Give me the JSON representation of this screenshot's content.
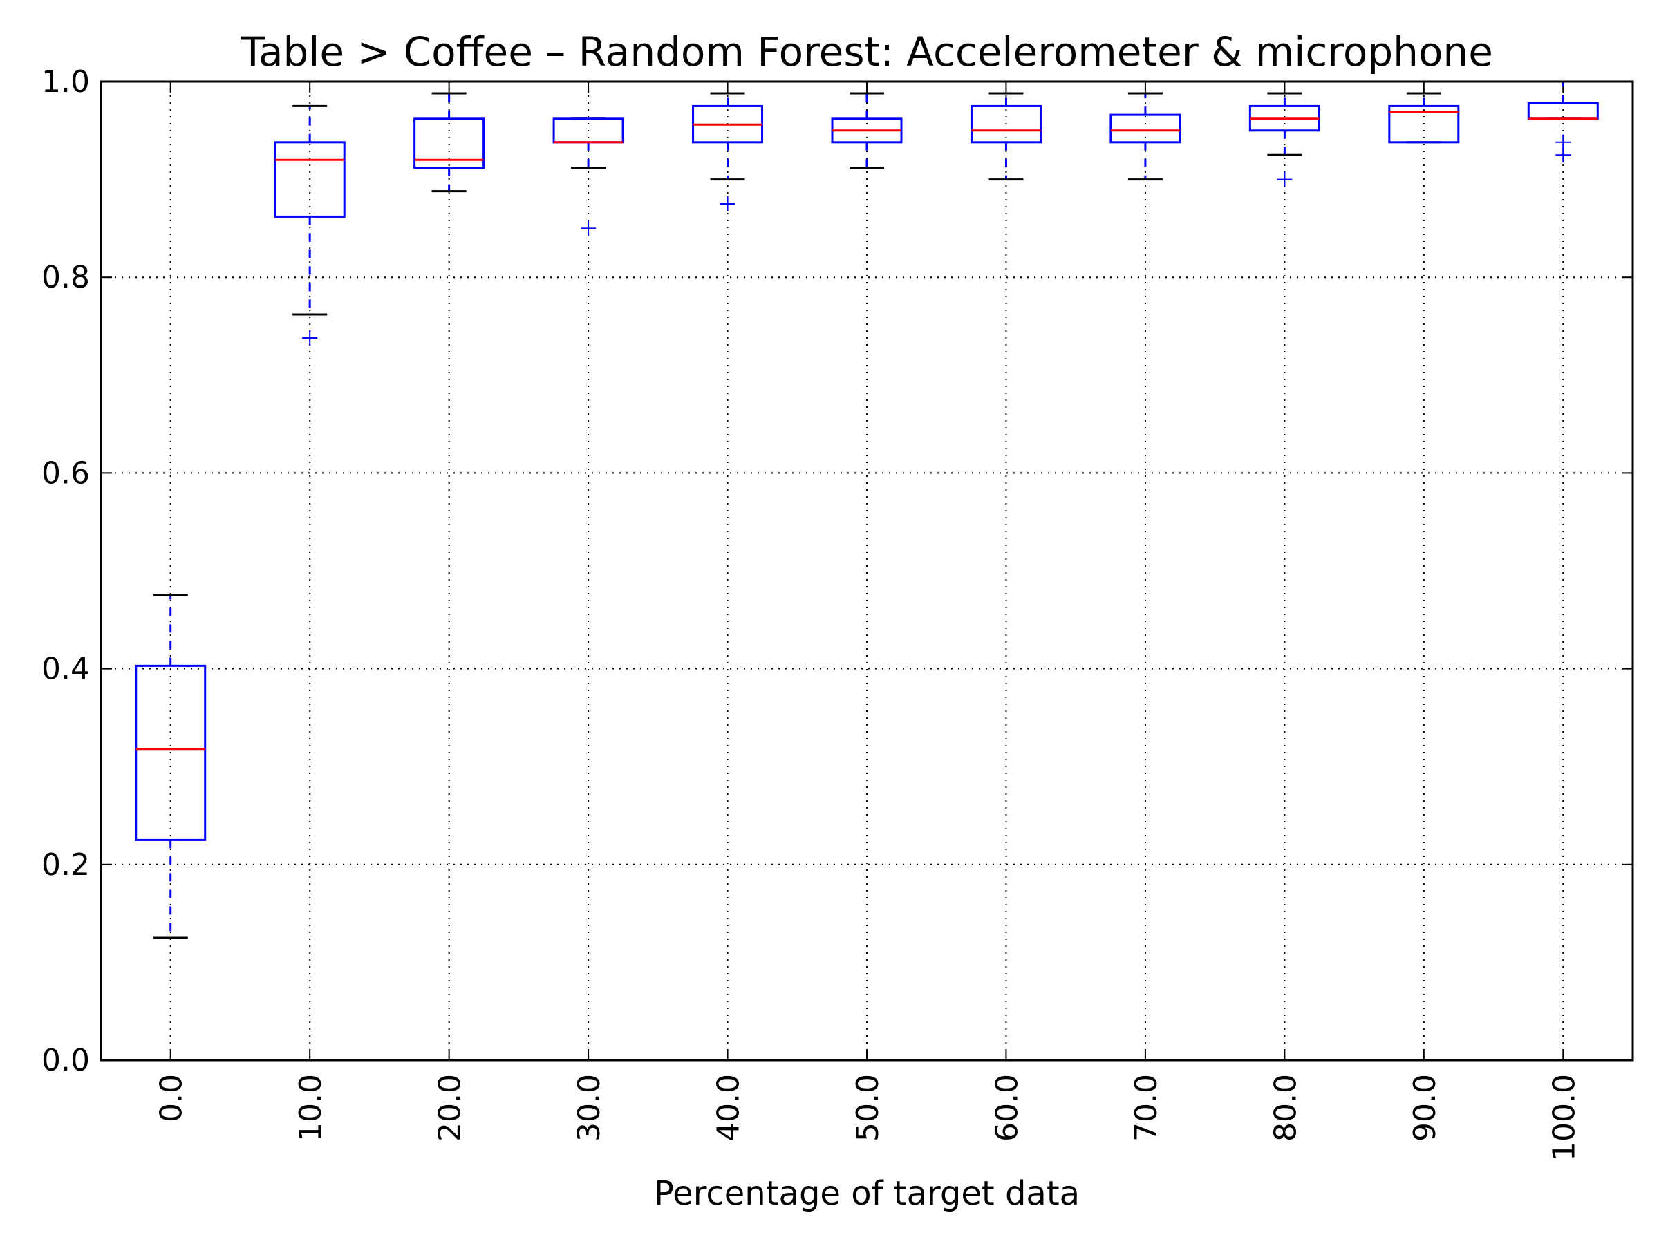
{
  "chart_data": {
    "type": "box",
    "title": "Table > Coffee – Random Forest: Accelerometer & microphone",
    "xlabel": "Percentage of target data",
    "ylabel": "",
    "ylim": [
      0.0,
      1.0
    ],
    "yticks": [
      "0.0",
      "0.2",
      "0.4",
      "0.6",
      "0.8",
      "1.0"
    ],
    "grid": true,
    "categories": [
      "0.0",
      "10.0",
      "20.0",
      "30.0",
      "40.0",
      "50.0",
      "60.0",
      "70.0",
      "80.0",
      "90.0",
      "100.0"
    ],
    "boxes": [
      {
        "whisker_low": 0.125,
        "q1": 0.225,
        "median": 0.318,
        "q3": 0.403,
        "whisker_high": 0.475,
        "fliers": []
      },
      {
        "whisker_low": 0.762,
        "q1": 0.862,
        "median": 0.92,
        "q3": 0.938,
        "whisker_high": 0.975,
        "fliers": [
          0.738
        ]
      },
      {
        "whisker_low": 0.888,
        "q1": 0.912,
        "median": 0.92,
        "q3": 0.962,
        "whisker_high": 0.988,
        "fliers": []
      },
      {
        "whisker_low": 0.912,
        "q1": 0.938,
        "median": 0.938,
        "q3": 0.962,
        "whisker_high": 0.962,
        "fliers": [
          0.85
        ]
      },
      {
        "whisker_low": 0.9,
        "q1": 0.938,
        "median": 0.956,
        "q3": 0.975,
        "whisker_high": 0.988,
        "fliers": [
          0.875
        ]
      },
      {
        "whisker_low": 0.912,
        "q1": 0.938,
        "median": 0.95,
        "q3": 0.962,
        "whisker_high": 0.988,
        "fliers": []
      },
      {
        "whisker_low": 0.9,
        "q1": 0.938,
        "median": 0.95,
        "q3": 0.975,
        "whisker_high": 0.988,
        "fliers": []
      },
      {
        "whisker_low": 0.9,
        "q1": 0.938,
        "median": 0.95,
        "q3": 0.966,
        "whisker_high": 0.988,
        "fliers": []
      },
      {
        "whisker_low": 0.925,
        "q1": 0.95,
        "median": 0.962,
        "q3": 0.975,
        "whisker_high": 0.988,
        "fliers": [
          0.9
        ]
      },
      {
        "whisker_low": 0.938,
        "q1": 0.938,
        "median": 0.969,
        "q3": 0.975,
        "whisker_high": 0.988,
        "fliers": []
      },
      {
        "whisker_low": 0.962,
        "q1": 0.962,
        "median": 0.962,
        "q3": 0.978,
        "whisker_high": 1.0,
        "fliers": [
          0.938,
          0.925
        ]
      }
    ],
    "colors": {
      "box": "#0000ff",
      "whisker": "#0000ff",
      "cap": "#000000",
      "median": "#ff0000",
      "flier": "#0000ff",
      "grid": "#000000",
      "axes": "#000000"
    }
  }
}
